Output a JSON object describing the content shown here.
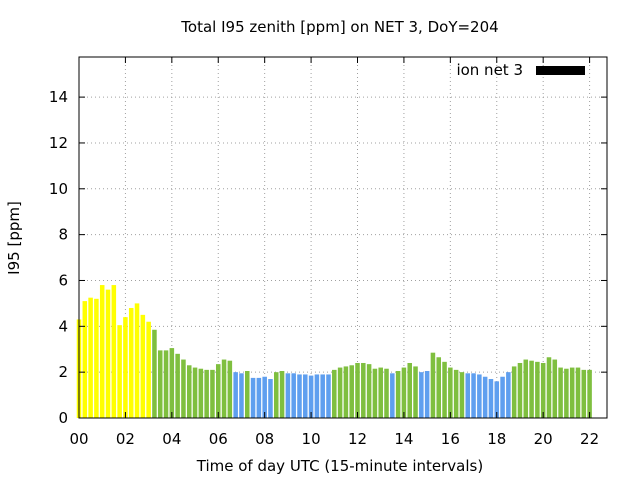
{
  "chart_data": {
    "type": "bar",
    "title": "Total I95 zenith [ppm] on NET 3, DoY=204",
    "xlabel": "Time of day UTC (15-minute intervals)",
    "ylabel": "I95 [ppm]",
    "xlim": [
      0,
      22.75
    ],
    "ylim": [
      0,
      15.75
    ],
    "x_ticks": [
      "00",
      "02",
      "04",
      "06",
      "08",
      "10",
      "12",
      "14",
      "16",
      "18",
      "20",
      "22"
    ],
    "y_ticks": [
      "0",
      "2",
      "4",
      "6",
      "8",
      "10",
      "12",
      "14"
    ],
    "grid": true,
    "legend": {
      "position": "top-right",
      "entries": [
        {
          "label": "ion net 3",
          "color": "#000000"
        }
      ]
    },
    "bar_interval_hours": 0.25,
    "colors": {
      "yellow": "#ffff00",
      "green": "#7fbf3f",
      "blue": "#5f9fef"
    },
    "values": [
      4.3,
      5.1,
      5.25,
      5.2,
      5.8,
      5.6,
      5.8,
      4.05,
      4.4,
      4.8,
      5.0,
      4.5,
      4.2,
      3.85,
      2.95,
      2.95,
      3.05,
      2.8,
      2.55,
      2.3,
      2.2,
      2.15,
      2.1,
      2.1,
      2.35,
      2.55,
      2.5,
      2.0,
      1.95,
      2.05,
      1.75,
      1.75,
      1.8,
      1.7,
      2.0,
      2.05,
      1.95,
      1.95,
      1.9,
      1.9,
      1.85,
      1.9,
      1.9,
      1.9,
      2.1,
      2.2,
      2.25,
      2.3,
      2.4,
      2.4,
      2.35,
      2.15,
      2.2,
      2.15,
      1.95,
      2.05,
      2.2,
      2.4,
      2.25,
      2.0,
      2.05,
      2.85,
      2.65,
      2.45,
      2.2,
      2.1,
      2.0,
      1.95,
      1.95,
      1.9,
      1.8,
      1.7,
      1.6,
      1.8,
      2.0,
      2.25,
      2.4,
      2.55,
      2.5,
      2.45,
      2.4,
      2.65,
      2.55,
      2.2,
      2.15,
      2.2,
      2.2,
      2.1,
      2.1
    ],
    "bar_colors": [
      "yellow",
      "yellow",
      "yellow",
      "yellow",
      "yellow",
      "yellow",
      "yellow",
      "yellow",
      "yellow",
      "yellow",
      "yellow",
      "yellow",
      "yellow",
      "green",
      "green",
      "green",
      "green",
      "green",
      "green",
      "green",
      "green",
      "green",
      "green",
      "green",
      "green",
      "green",
      "green",
      "blue",
      "blue",
      "green",
      "blue",
      "blue",
      "blue",
      "blue",
      "green",
      "green",
      "blue",
      "blue",
      "blue",
      "blue",
      "blue",
      "blue",
      "blue",
      "blue",
      "green",
      "green",
      "green",
      "green",
      "green",
      "green",
      "green",
      "green",
      "green",
      "green",
      "blue",
      "green",
      "green",
      "green",
      "green",
      "blue",
      "blue",
      "green",
      "green",
      "green",
      "green",
      "green",
      "green",
      "blue",
      "blue",
      "blue",
      "blue",
      "blue",
      "blue",
      "blue",
      "blue",
      "green",
      "green",
      "green",
      "green",
      "green",
      "green",
      "green",
      "green",
      "green",
      "green",
      "green",
      "green",
      "green",
      "green"
    ]
  }
}
